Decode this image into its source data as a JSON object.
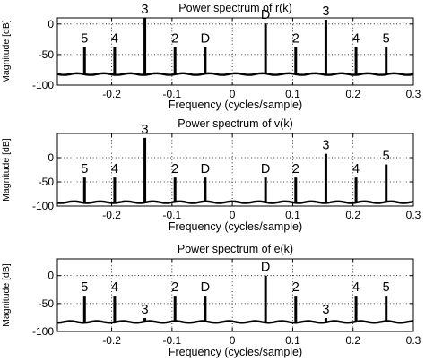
{
  "chart_data": [
    {
      "type": "bar",
      "title": "Power spectrum of r(k)",
      "xlabel": "Frequency  (cycles/sample)",
      "ylabel": "Magnitude [dB]",
      "xlim": [
        -0.29,
        0.3
      ],
      "ylim": [
        -100,
        10
      ],
      "xticks": [
        -0.2,
        -0.1,
        0,
        0.1,
        0.2,
        0.3
      ],
      "xtick_labels": [
        "-0.2",
        "-0.1",
        "0",
        "0.1",
        "0.2",
        "0.3"
      ],
      "yticks": [
        -100,
        -50,
        0
      ],
      "ytick_labels": [
        "-100",
        "-50",
        "0"
      ],
      "grid": true,
      "floor_db": -82,
      "peaks": [
        {
          "x": -0.245,
          "y": -38,
          "label": "5"
        },
        {
          "x": -0.195,
          "y": -38,
          "label": "4"
        },
        {
          "x": -0.145,
          "y": 10,
          "label": "3"
        },
        {
          "x": -0.095,
          "y": -38,
          "label": "2"
        },
        {
          "x": -0.045,
          "y": -38,
          "label": "D"
        },
        {
          "x": 0.055,
          "y": 1,
          "label": "D"
        },
        {
          "x": 0.105,
          "y": -38,
          "label": "2"
        },
        {
          "x": 0.155,
          "y": 7,
          "label": "3"
        },
        {
          "x": 0.205,
          "y": -38,
          "label": "4"
        },
        {
          "x": 0.255,
          "y": -38,
          "label": "5"
        }
      ]
    },
    {
      "type": "bar",
      "title": "Power spectrum of v(k)",
      "xlabel": "Frequency  (cycles/sample)",
      "ylabel": "Magnitude [dB]",
      "xlim": [
        -0.29,
        0.3
      ],
      "ylim": [
        -100,
        50
      ],
      "xticks": [
        -0.2,
        -0.1,
        0,
        0.1,
        0.2,
        0.3
      ],
      "xtick_labels": [
        "-0.2",
        "-0.1",
        "0",
        "0.1",
        "0.2",
        "0.3"
      ],
      "yticks": [
        -100,
        -50,
        0
      ],
      "ytick_labels": [
        "-100",
        "-50",
        "0"
      ],
      "grid": true,
      "floor_db": -92,
      "peaks": [
        {
          "x": -0.245,
          "y": -41,
          "label": "5"
        },
        {
          "x": -0.195,
          "y": -41,
          "label": "4"
        },
        {
          "x": -0.145,
          "y": 41,
          "label": "3"
        },
        {
          "x": -0.095,
          "y": -41,
          "label": "2"
        },
        {
          "x": -0.045,
          "y": -41,
          "label": "D"
        },
        {
          "x": 0.055,
          "y": -41,
          "label": "D"
        },
        {
          "x": 0.105,
          "y": -41,
          "label": "2"
        },
        {
          "x": 0.155,
          "y": 8,
          "label": "3"
        },
        {
          "x": 0.205,
          "y": -41,
          "label": "4"
        },
        {
          "x": 0.255,
          "y": -14,
          "label": "5"
        }
      ]
    },
    {
      "type": "bar",
      "title": "Power spectrum of e(k)",
      "xlabel": "Frequency  (cycles/sample)",
      "ylabel": "Magnitude [dB]",
      "xlim": [
        -0.29,
        0.3
      ],
      "ylim": [
        -100,
        30
      ],
      "xticks": [
        -0.2,
        -0.1,
        0,
        0.1,
        0.2,
        0.3
      ],
      "xtick_labels": [
        "-0.2",
        "-0.1",
        "0",
        "0.1",
        "0.2",
        "0.3"
      ],
      "yticks": [
        -100,
        -50,
        0
      ],
      "ytick_labels": [
        "-100",
        "-50",
        "0"
      ],
      "grid": true,
      "floor_db": -83,
      "peaks": [
        {
          "x": -0.245,
          "y": -36,
          "label": "5"
        },
        {
          "x": -0.195,
          "y": -36,
          "label": "4"
        },
        {
          "x": -0.145,
          "y": -76,
          "label": "3"
        },
        {
          "x": -0.095,
          "y": -36,
          "label": "2"
        },
        {
          "x": -0.045,
          "y": -36,
          "label": "D"
        },
        {
          "x": 0.055,
          "y": 0,
          "label": "D"
        },
        {
          "x": 0.105,
          "y": -36,
          "label": "2"
        },
        {
          "x": 0.155,
          "y": -76,
          "label": "3"
        },
        {
          "x": 0.205,
          "y": -36,
          "label": "4"
        },
        {
          "x": 0.255,
          "y": -36,
          "label": "5"
        }
      ]
    }
  ]
}
